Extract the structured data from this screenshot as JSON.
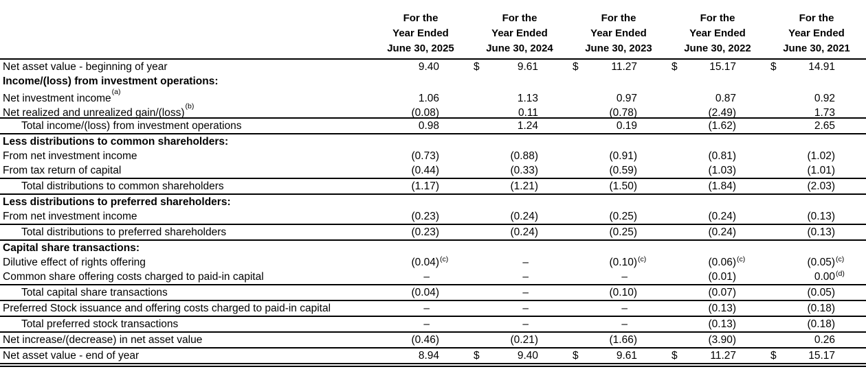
{
  "table": {
    "columns": [
      [
        "For the",
        "Year Ended",
        "June 30, 2025"
      ],
      [
        "For the",
        "Year Ended",
        "June 30, 2024"
      ],
      [
        "For the",
        "Year Ended",
        "June 30, 2023"
      ],
      [
        "For the",
        "Year Ended",
        "June 30, 2022"
      ],
      [
        "For the",
        "Year Ended",
        "June 30, 2021"
      ]
    ],
    "rows": [
      {
        "label": "Net asset value - beginning of year",
        "sup": "",
        "style": "normal",
        "border": "none",
        "cells": [
          {
            "d": "",
            "v": "9.40",
            "s": ""
          },
          {
            "d": "$",
            "v": "9.61",
            "s": ""
          },
          {
            "d": "$",
            "v": "11.27",
            "s": ""
          },
          {
            "d": "$",
            "v": "15.17",
            "s": ""
          },
          {
            "d": "$",
            "v": "14.91",
            "s": ""
          }
        ]
      },
      {
        "label": "Income/(loss) from investment operations:",
        "sup": "",
        "style": "bold",
        "border": "none",
        "cells": [
          {
            "d": "",
            "v": "",
            "s": ""
          },
          {
            "d": "",
            "v": "",
            "s": ""
          },
          {
            "d": "",
            "v": "",
            "s": ""
          },
          {
            "d": "",
            "v": "",
            "s": ""
          },
          {
            "d": "",
            "v": "",
            "s": ""
          }
        ]
      },
      {
        "label": "Net investment income",
        "sup": "(a)",
        "style": "normal",
        "border": "none",
        "cells": [
          {
            "d": "",
            "v": "1.06",
            "s": ""
          },
          {
            "d": "",
            "v": "1.13",
            "s": ""
          },
          {
            "d": "",
            "v": "0.97",
            "s": ""
          },
          {
            "d": "",
            "v": "0.87",
            "s": ""
          },
          {
            "d": "",
            "v": "0.92",
            "s": ""
          }
        ]
      },
      {
        "label": "Net realized and unrealized gain/(loss)",
        "sup": "(b)",
        "style": "normal",
        "border": "single",
        "cells": [
          {
            "d": "",
            "v": "(0.08)",
            "s": ""
          },
          {
            "d": "",
            "v": "0.11",
            "s": ""
          },
          {
            "d": "",
            "v": "(0.78)",
            "s": ""
          },
          {
            "d": "",
            "v": "(2.49)",
            "s": ""
          },
          {
            "d": "",
            "v": "1.73",
            "s": ""
          }
        ]
      },
      {
        "label": "Total income/(loss) from investment operations",
        "sup": "",
        "style": "indent",
        "border": "single",
        "cells": [
          {
            "d": "",
            "v": "0.98",
            "s": ""
          },
          {
            "d": "",
            "v": "1.24",
            "s": ""
          },
          {
            "d": "",
            "v": "0.19",
            "s": ""
          },
          {
            "d": "",
            "v": "(1.62)",
            "s": ""
          },
          {
            "d": "",
            "v": "2.65",
            "s": ""
          }
        ]
      },
      {
        "label": "Less distributions to common shareholders:",
        "sup": "",
        "style": "bold",
        "border": "none",
        "cells": [
          {
            "d": "",
            "v": "",
            "s": ""
          },
          {
            "d": "",
            "v": "",
            "s": ""
          },
          {
            "d": "",
            "v": "",
            "s": ""
          },
          {
            "d": "",
            "v": "",
            "s": ""
          },
          {
            "d": "",
            "v": "",
            "s": ""
          }
        ]
      },
      {
        "label": "From net investment income",
        "sup": "",
        "style": "normal",
        "border": "none",
        "cells": [
          {
            "d": "",
            "v": "(0.73)",
            "s": ""
          },
          {
            "d": "",
            "v": "(0.88)",
            "s": ""
          },
          {
            "d": "",
            "v": "(0.91)",
            "s": ""
          },
          {
            "d": "",
            "v": "(0.81)",
            "s": ""
          },
          {
            "d": "",
            "v": "(1.02)",
            "s": ""
          }
        ]
      },
      {
        "label": "From tax return of capital",
        "sup": "",
        "style": "normal",
        "border": "single",
        "cells": [
          {
            "d": "",
            "v": "(0.44)",
            "s": ""
          },
          {
            "d": "",
            "v": "(0.33)",
            "s": ""
          },
          {
            "d": "",
            "v": "(0.59)",
            "s": ""
          },
          {
            "d": "",
            "v": "(1.03)",
            "s": ""
          },
          {
            "d": "",
            "v": "(1.01)",
            "s": ""
          }
        ]
      },
      {
        "label": "Total distributions to common shareholders",
        "sup": "",
        "style": "indent",
        "border": "single",
        "cells": [
          {
            "d": "",
            "v": "(1.17)",
            "s": ""
          },
          {
            "d": "",
            "v": "(1.21)",
            "s": ""
          },
          {
            "d": "",
            "v": "(1.50)",
            "s": ""
          },
          {
            "d": "",
            "v": "(1.84)",
            "s": ""
          },
          {
            "d": "",
            "v": "(2.03)",
            "s": ""
          }
        ]
      },
      {
        "label": "Less distributions to preferred shareholders:",
        "sup": "",
        "style": "bold",
        "border": "none",
        "cells": [
          {
            "d": "",
            "v": "",
            "s": ""
          },
          {
            "d": "",
            "v": "",
            "s": ""
          },
          {
            "d": "",
            "v": "",
            "s": ""
          },
          {
            "d": "",
            "v": "",
            "s": ""
          },
          {
            "d": "",
            "v": "",
            "s": ""
          }
        ]
      },
      {
        "label": "From net investment income",
        "sup": "",
        "style": "normal",
        "border": "single",
        "cells": [
          {
            "d": "",
            "v": "(0.23)",
            "s": ""
          },
          {
            "d": "",
            "v": "(0.24)",
            "s": ""
          },
          {
            "d": "",
            "v": "(0.25)",
            "s": ""
          },
          {
            "d": "",
            "v": "(0.24)",
            "s": ""
          },
          {
            "d": "",
            "v": "(0.13)",
            "s": ""
          }
        ]
      },
      {
        "label": "Total distributions to preferred shareholders",
        "sup": "",
        "style": "indent",
        "border": "single",
        "cells": [
          {
            "d": "",
            "v": "(0.23)",
            "s": ""
          },
          {
            "d": "",
            "v": "(0.24)",
            "s": ""
          },
          {
            "d": "",
            "v": "(0.25)",
            "s": ""
          },
          {
            "d": "",
            "v": "(0.24)",
            "s": ""
          },
          {
            "d": "",
            "v": "(0.13)",
            "s": ""
          }
        ]
      },
      {
        "label": "Capital share transactions:",
        "sup": "",
        "style": "bold",
        "border": "none",
        "cells": [
          {
            "d": "",
            "v": "",
            "s": ""
          },
          {
            "d": "",
            "v": "",
            "s": ""
          },
          {
            "d": "",
            "v": "",
            "s": ""
          },
          {
            "d": "",
            "v": "",
            "s": ""
          },
          {
            "d": "",
            "v": "",
            "s": ""
          }
        ]
      },
      {
        "label": "Dilutive effect of rights offering",
        "sup": "",
        "style": "normal",
        "border": "none",
        "cells": [
          {
            "d": "",
            "v": "(0.04)",
            "s": "(c)"
          },
          {
            "d": "",
            "v": "–",
            "s": ""
          },
          {
            "d": "",
            "v": "(0.10)",
            "s": "(c)"
          },
          {
            "d": "",
            "v": "(0.06)",
            "s": "(c)"
          },
          {
            "d": "",
            "v": "(0.05)",
            "s": "(c)"
          }
        ]
      },
      {
        "label": "Common share offering costs charged to paid-in capital",
        "sup": "",
        "style": "normal",
        "border": "single",
        "cells": [
          {
            "d": "",
            "v": "–",
            "s": ""
          },
          {
            "d": "",
            "v": "–",
            "s": ""
          },
          {
            "d": "",
            "v": "–",
            "s": ""
          },
          {
            "d": "",
            "v": "(0.01)",
            "s": ""
          },
          {
            "d": "",
            "v": "0.00",
            "s": "(d)"
          }
        ]
      },
      {
        "label": "Total capital share transactions",
        "sup": "",
        "style": "indent",
        "border": "single",
        "cells": [
          {
            "d": "",
            "v": "(0.04)",
            "s": ""
          },
          {
            "d": "",
            "v": "–",
            "s": ""
          },
          {
            "d": "",
            "v": "(0.10)",
            "s": ""
          },
          {
            "d": "",
            "v": "(0.07)",
            "s": ""
          },
          {
            "d": "",
            "v": "(0.05)",
            "s": ""
          }
        ]
      },
      {
        "label": "Preferred Stock issuance and offering costs charged to paid-in capital",
        "sup": "",
        "style": "normal",
        "border": "single",
        "cells": [
          {
            "d": "",
            "v": "–",
            "s": ""
          },
          {
            "d": "",
            "v": "–",
            "s": ""
          },
          {
            "d": "",
            "v": "–",
            "s": ""
          },
          {
            "d": "",
            "v": "(0.13)",
            "s": ""
          },
          {
            "d": "",
            "v": "(0.18)",
            "s": ""
          }
        ]
      },
      {
        "label": "Total preferred stock transactions",
        "sup": "",
        "style": "indent",
        "border": "single",
        "cells": [
          {
            "d": "",
            "v": "–",
            "s": ""
          },
          {
            "d": "",
            "v": "–",
            "s": ""
          },
          {
            "d": "",
            "v": "–",
            "s": ""
          },
          {
            "d": "",
            "v": "(0.13)",
            "s": ""
          },
          {
            "d": "",
            "v": "(0.18)",
            "s": ""
          }
        ]
      },
      {
        "label": "Net increase/(decrease) in net asset value",
        "sup": "",
        "style": "normal",
        "border": "single",
        "cells": [
          {
            "d": "",
            "v": "(0.46)",
            "s": ""
          },
          {
            "d": "",
            "v": "(0.21)",
            "s": ""
          },
          {
            "d": "",
            "v": "(1.66)",
            "s": ""
          },
          {
            "d": "",
            "v": "(3.90)",
            "s": ""
          },
          {
            "d": "",
            "v": "0.26",
            "s": ""
          }
        ]
      },
      {
        "label": "Net asset value - end of year",
        "sup": "",
        "style": "normal",
        "border": "double",
        "cells": [
          {
            "d": "",
            "v": "8.94",
            "s": ""
          },
          {
            "d": "$",
            "v": "9.40",
            "s": ""
          },
          {
            "d": "$",
            "v": "9.61",
            "s": ""
          },
          {
            "d": "$",
            "v": "11.27",
            "s": ""
          },
          {
            "d": "$",
            "v": "15.17",
            "s": ""
          }
        ]
      }
    ]
  }
}
